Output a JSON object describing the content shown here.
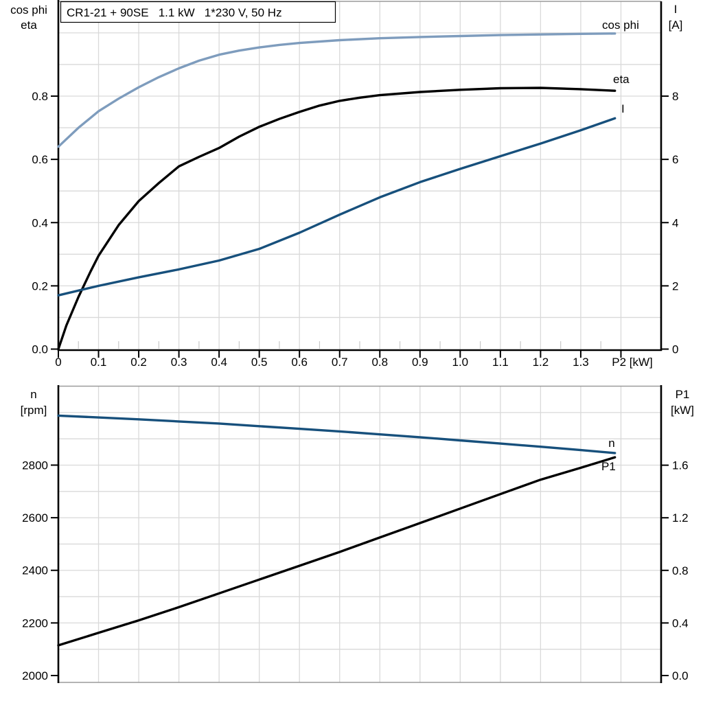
{
  "title_box": {
    "text": "CR1-21 + 90SE   1.1 kW   1*230 V, 50 Hz"
  },
  "colors": {
    "cos_phi": "#7e9cbd",
    "eta": "#000000",
    "current": "#17507c",
    "speed": "#17507c",
    "p1": "#000000",
    "grid": "#d9d9d9"
  },
  "chart_data": [
    {
      "type": "line",
      "title": "CR1-21 + 90SE 1.1 kW 1*230 V, 50 Hz",
      "xlabel": "P2 [kW]",
      "x_unit_label": "P2 [kW]",
      "x_range": [
        0,
        1.5
      ],
      "x_tick_step": 0.1,
      "x_tick_labels": [
        "0",
        "0.1",
        "0.2",
        "0.3",
        "0.4",
        "0.5",
        "0.6",
        "0.7",
        "0.8",
        "0.9",
        "1.0",
        "1.1",
        "1.2",
        "1.3"
      ],
      "grid": true,
      "left_axis": {
        "label_line1": "cos phi",
        "label_line2": "eta",
        "range": [
          0,
          1.1
        ],
        "tick_labels": [
          "0.0",
          "0.2",
          "0.4",
          "0.6",
          "0.8"
        ],
        "tick_step": 0.2
      },
      "right_axis": {
        "label_line1": "I",
        "label_line2": "[A]",
        "range": [
          0,
          11
        ],
        "tick_labels": [
          "0",
          "2",
          "4",
          "6",
          "8"
        ],
        "tick_step": 2
      },
      "series": [
        {
          "name": "cos phi",
          "scale": "unit",
          "color": "#7e9cbd",
          "points": [
            [
              0,
              0.64
            ],
            [
              0.05,
              0.7
            ],
            [
              0.1,
              0.752
            ],
            [
              0.15,
              0.792
            ],
            [
              0.2,
              0.828
            ],
            [
              0.25,
              0.86
            ],
            [
              0.3,
              0.888
            ],
            [
              0.35,
              0.912
            ],
            [
              0.4,
              0.931
            ],
            [
              0.45,
              0.944
            ],
            [
              0.5,
              0.954
            ],
            [
              0.55,
              0.962
            ],
            [
              0.6,
              0.968
            ],
            [
              0.7,
              0.977
            ],
            [
              0.8,
              0.983
            ],
            [
              0.9,
              0.987
            ],
            [
              1.0,
              0.99
            ],
            [
              1.1,
              0.993
            ],
            [
              1.2,
              0.995
            ],
            [
              1.3,
              0.997
            ],
            [
              1.385,
              0.998
            ]
          ]
        },
        {
          "name": "eta",
          "scale": "unit",
          "color": "#000000",
          "points": [
            [
              0,
              0
            ],
            [
              0.02,
              0.075
            ],
            [
              0.05,
              0.165
            ],
            [
              0.08,
              0.245
            ],
            [
              0.1,
              0.295
            ],
            [
              0.15,
              0.392
            ],
            [
              0.2,
              0.468
            ],
            [
              0.25,
              0.525
            ],
            [
              0.3,
              0.578
            ],
            [
              0.35,
              0.608
            ],
            [
              0.4,
              0.636
            ],
            [
              0.45,
              0.672
            ],
            [
              0.5,
              0.703
            ],
            [
              0.55,
              0.728
            ],
            [
              0.6,
              0.75
            ],
            [
              0.65,
              0.77
            ],
            [
              0.7,
              0.785
            ],
            [
              0.75,
              0.795
            ],
            [
              0.8,
              0.803
            ],
            [
              0.9,
              0.813
            ],
            [
              1.0,
              0.82
            ],
            [
              1.1,
              0.825
            ],
            [
              1.2,
              0.826
            ],
            [
              1.3,
              0.822
            ],
            [
              1.385,
              0.817
            ]
          ]
        },
        {
          "name": "I",
          "scale": "amp",
          "color": "#17507c",
          "points": [
            [
              0,
              1.7
            ],
            [
              0.1,
              2.0
            ],
            [
              0.2,
              2.27
            ],
            [
              0.3,
              2.52
            ],
            [
              0.4,
              2.8
            ],
            [
              0.5,
              3.17
            ],
            [
              0.6,
              3.68
            ],
            [
              0.7,
              4.25
            ],
            [
              0.8,
              4.8
            ],
            [
              0.9,
              5.28
            ],
            [
              1.0,
              5.7
            ],
            [
              1.1,
              6.1
            ],
            [
              1.2,
              6.5
            ],
            [
              1.3,
              6.92
            ],
            [
              1.385,
              7.3
            ]
          ]
        }
      ]
    },
    {
      "type": "line",
      "xlabel": "",
      "x_range": [
        0,
        1.5
      ],
      "x_tick_step": 0.1,
      "grid": true,
      "left_axis": {
        "label_line1": "n",
        "label_line2": "[rpm]",
        "range": [
          1975,
          3100
        ],
        "tick_labels": [
          "2000",
          "2200",
          "2400",
          "2600",
          "2800"
        ],
        "tick_step": 200
      },
      "right_axis": {
        "label_line1": "P1",
        "label_line2": "[kW]",
        "range": [
          0,
          2.2
        ],
        "tick_labels": [
          "0.0",
          "0.4",
          "0.8",
          "1.2",
          "1.6"
        ],
        "tick_step": 0.4
      },
      "series": [
        {
          "name": "n",
          "scale": "rpm",
          "color": "#17507c",
          "points": [
            [
              0,
              2988
            ],
            [
              0.1,
              2981
            ],
            [
              0.2,
              2974
            ],
            [
              0.3,
              2966
            ],
            [
              0.4,
              2958
            ],
            [
              0.5,
              2948
            ],
            [
              0.6,
              2938
            ],
            [
              0.7,
              2928
            ],
            [
              0.8,
              2917
            ],
            [
              0.9,
              2906
            ],
            [
              1.0,
              2894
            ],
            [
              1.1,
              2882
            ],
            [
              1.2,
              2870
            ],
            [
              1.3,
              2857
            ],
            [
              1.385,
              2846
            ]
          ]
        },
        {
          "name": "P1",
          "scale": "kw",
          "color": "#000000",
          "points": [
            [
              0,
              0.23
            ],
            [
              0.1,
              0.325
            ],
            [
              0.2,
              0.42
            ],
            [
              0.3,
              0.52
            ],
            [
              0.4,
              0.625
            ],
            [
              0.5,
              0.73
            ],
            [
              0.6,
              0.835
            ],
            [
              0.7,
              0.94
            ],
            [
              0.8,
              1.05
            ],
            [
              0.9,
              1.16
            ],
            [
              1.0,
              1.27
            ],
            [
              1.1,
              1.38
            ],
            [
              1.2,
              1.49
            ],
            [
              1.3,
              1.58
            ],
            [
              1.385,
              1.66
            ]
          ]
        }
      ]
    }
  ]
}
